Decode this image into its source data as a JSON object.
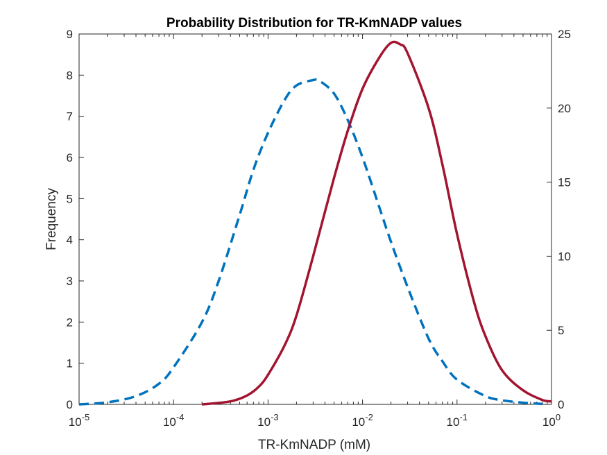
{
  "chart_data": {
    "type": "line",
    "title": "Probability Distribution for TR-KmNADP values",
    "xlabel": "TR-KmNADP (mM)",
    "ylabel": "Frequency",
    "xscale": "log",
    "xlim": [
      1e-05,
      1
    ],
    "x_ticks": [
      {
        "base": "10",
        "exp": "-5"
      },
      {
        "base": "10",
        "exp": "-4"
      },
      {
        "base": "10",
        "exp": "-3"
      },
      {
        "base": "10",
        "exp": "-2"
      },
      {
        "base": "10",
        "exp": "-1"
      },
      {
        "base": "10",
        "exp": "0"
      }
    ],
    "y_left": {
      "lim": [
        0,
        9
      ],
      "ticks": [
        "0",
        "1",
        "2",
        "3",
        "4",
        "5",
        "6",
        "7",
        "8",
        "9"
      ]
    },
    "y_right": {
      "lim": [
        0,
        25
      ],
      "ticks": [
        "0",
        "5",
        "10",
        "15",
        "20",
        "25"
      ]
    },
    "grid": false,
    "legend": "none",
    "series": [
      {
        "axis": "left",
        "style": "dashed",
        "color": "#0072BD",
        "x": [
          1e-05,
          2e-05,
          4e-05,
          7e-05,
          0.0001,
          0.0002,
          0.0003,
          0.0005,
          0.0007,
          0.001,
          0.0015,
          0.002,
          0.003,
          0.0035,
          0.005,
          0.007,
          0.01,
          0.015,
          0.02,
          0.03,
          0.05,
          0.07,
          0.1,
          0.2,
          0.3,
          0.5,
          0.8
        ],
        "y": [
          0.0,
          0.05,
          0.2,
          0.5,
          0.9,
          2.0,
          3.0,
          4.6,
          5.7,
          6.6,
          7.4,
          7.75,
          7.88,
          7.86,
          7.55,
          6.9,
          6.0,
          4.8,
          3.95,
          2.85,
          1.6,
          1.05,
          0.6,
          0.2,
          0.1,
          0.04,
          0.01
        ]
      },
      {
        "axis": "right",
        "style": "solid",
        "color": "#A2142F",
        "x": [
          0.0002,
          0.0004,
          0.0006,
          0.0008,
          0.001,
          0.0015,
          0.002,
          0.003,
          0.005,
          0.007,
          0.01,
          0.015,
          0.02,
          0.025,
          0.03,
          0.05,
          0.07,
          0.1,
          0.15,
          0.2,
          0.3,
          0.5,
          0.8,
          1.0
        ],
        "y": [
          0.0,
          0.2,
          0.6,
          1.2,
          2.0,
          4.0,
          6.0,
          10.0,
          15.3,
          18.5,
          21.3,
          23.4,
          24.4,
          24.3,
          23.7,
          20.0,
          16.2,
          11.5,
          7.0,
          4.6,
          2.3,
          0.95,
          0.3,
          0.2
        ]
      }
    ]
  }
}
